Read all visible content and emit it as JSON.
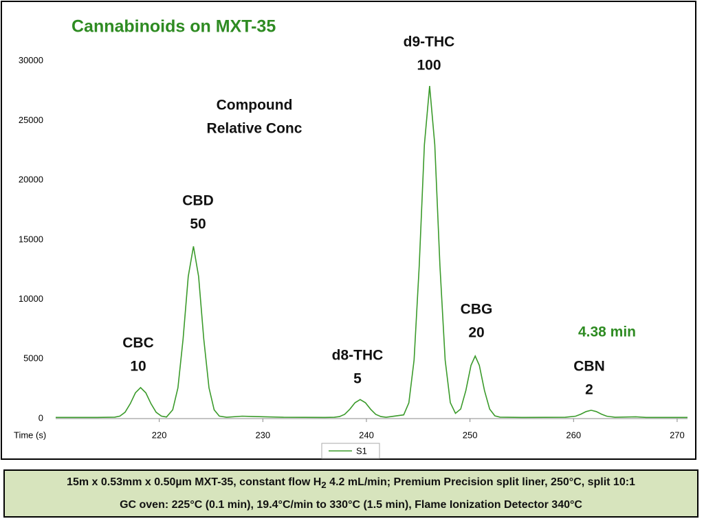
{
  "chart_data": {
    "type": "line",
    "title": "Cannabinoids on MXT-35",
    "x_label": "Time (s)",
    "annotations": {
      "header": [
        "Compound",
        "Relative Conc"
      ],
      "time": "4.38 min"
    },
    "peaks": [
      {
        "name": "CBC",
        "conc": 10
      },
      {
        "name": "CBD",
        "conc": 50
      },
      {
        "name": "d8-THC",
        "conc": 5
      },
      {
        "name": "d9-THC",
        "conc": 100
      },
      {
        "name": "CBG",
        "conc": 20
      },
      {
        "name": "CBN",
        "conc": 2
      }
    ],
    "x": [
      210,
      214,
      215.7,
      216.2,
      216.7,
      217.2,
      217.7,
      218.2,
      218.7,
      219.2,
      219.7,
      220.2,
      220.7,
      221.3,
      221.8,
      222.3,
      222.8,
      223.3,
      223.8,
      224.3,
      224.8,
      225.3,
      225.8,
      226.5,
      228,
      229,
      232,
      236,
      236.9,
      237.4,
      237.9,
      238.4,
      238.9,
      239.4,
      239.9,
      240.4,
      240.9,
      241.4,
      241.9,
      243.6,
      244.1,
      244.6,
      245.1,
      245.6,
      246.1,
      246.6,
      247.1,
      247.6,
      248.1,
      248.6,
      249.1,
      249.6,
      250.1,
      250.5,
      250.9,
      251.4,
      251.9,
      252.4,
      252.9,
      255,
      259.2,
      260.2,
      260.7,
      261.2,
      261.7,
      262.2,
      262.7,
      263.2,
      264,
      266,
      267,
      271
    ],
    "series": [
      {
        "name": "S1",
        "color": "#3a9a2a",
        "values": [
          100,
          100,
          120,
          210,
          530,
          1250,
          2160,
          2600,
          2160,
          1250,
          530,
          210,
          130,
          730,
          2580,
          6670,
          11910,
          14450,
          11910,
          6670,
          2580,
          730,
          210,
          110,
          200,
          180,
          110,
          100,
          110,
          170,
          360,
          790,
          1330,
          1600,
          1330,
          790,
          360,
          170,
          110,
          310,
          1320,
          4910,
          12830,
          22980,
          27900,
          22980,
          12830,
          4910,
          1340,
          440,
          800,
          2350,
          4470,
          5250,
          4470,
          2350,
          800,
          230,
          120,
          100,
          110,
          200,
          370,
          590,
          700,
          590,
          370,
          200,
          110,
          150,
          100,
          100
        ]
      }
    ],
    "xlim": [
      210,
      271
    ],
    "xticks": [
      220,
      230,
      240,
      250,
      260,
      270
    ],
    "ylim": [
      0,
      35000
    ],
    "yticks": [
      0,
      5000,
      10000,
      15000,
      20000,
      25000,
      30000
    ],
    "grid": false,
    "legend": "bottom"
  },
  "footer": {
    "line1": [
      "15m x 0.53mm x 0.50µm MXT-35,  constant flow H",
      "2",
      " 4.2 mL/min; Premium Precision split liner, 250°C, split 10:1"
    ],
    "line2": "GC oven:  225°C (0.1 min), 19.4°C/min to 330°C (1.5 min), Flame Ionization Detector 340°C"
  }
}
